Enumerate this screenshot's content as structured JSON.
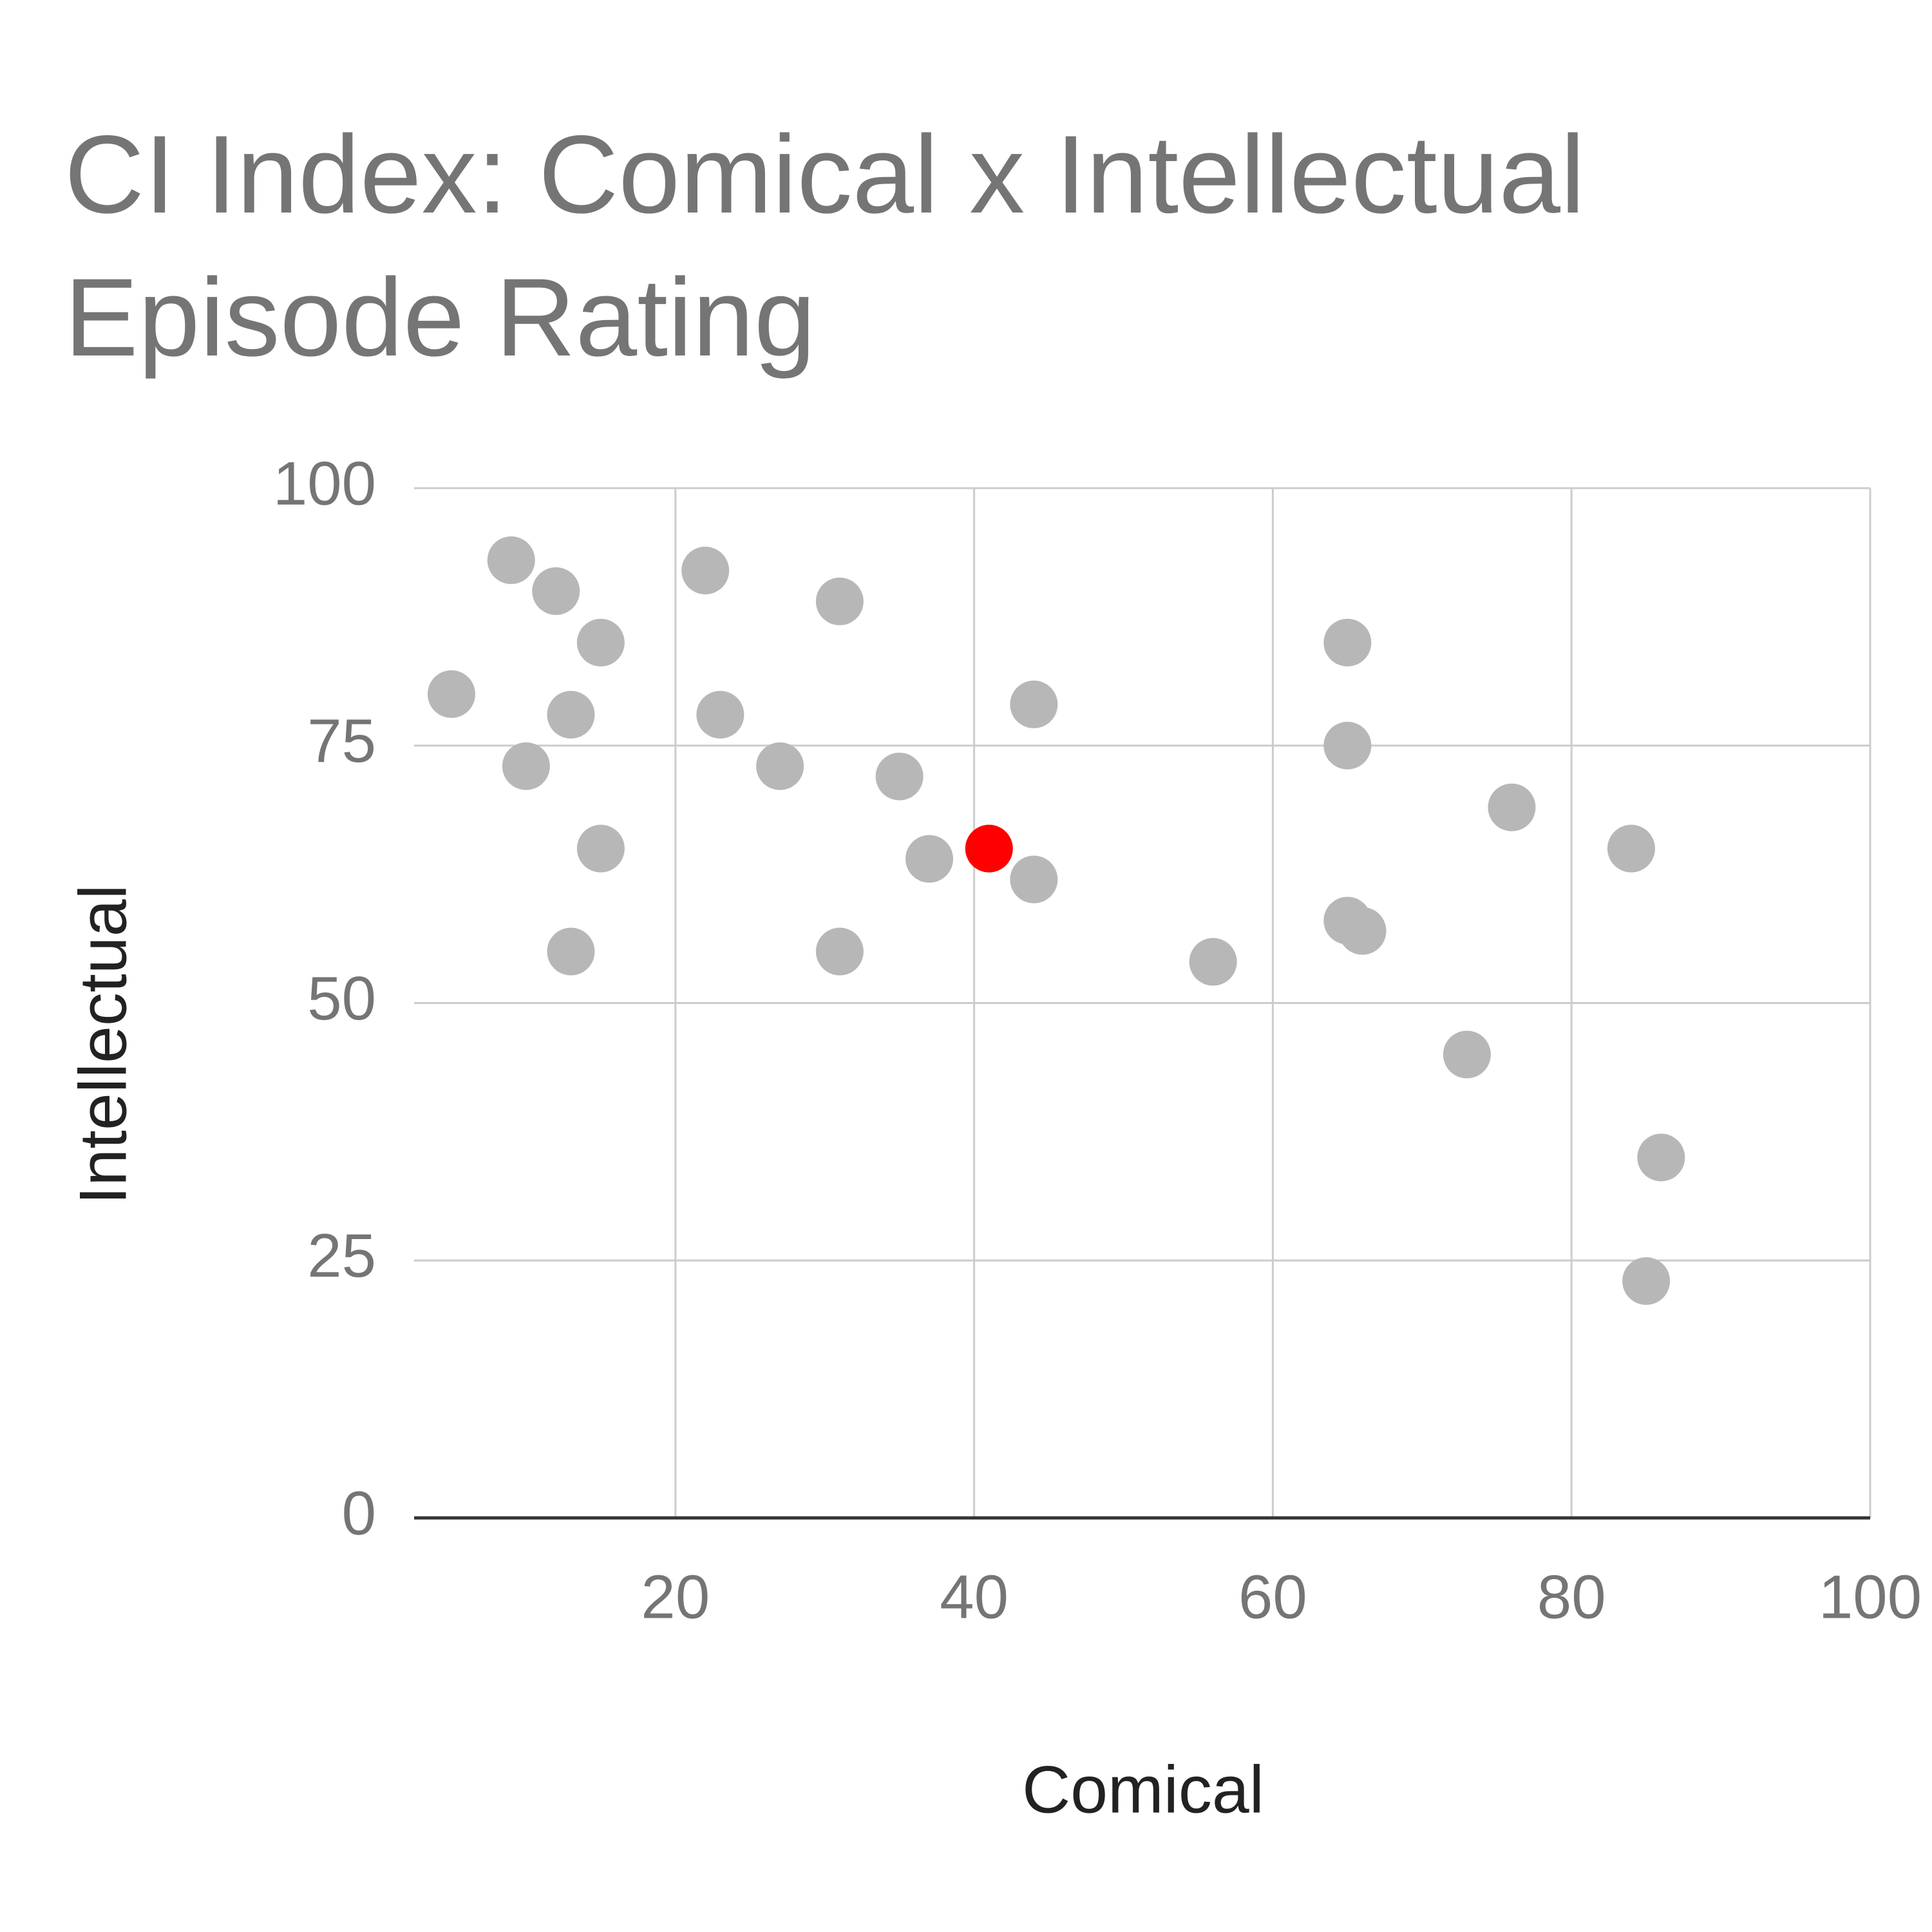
{
  "chart_data": {
    "type": "scatter",
    "title": "CI Index: Comical x Intellectual Episode Rating",
    "x_label": "Comical",
    "y_label": "Intellectual",
    "x": [
      9,
      12,
      15,
      5,
      13,
      10,
      15,
      13,
      22,
      23,
      27,
      31,
      35,
      31,
      37,
      44,
      44,
      41,
      56,
      65,
      65,
      65,
      66,
      76,
      73,
      84,
      86,
      85
    ],
    "y": [
      93,
      90,
      85,
      80,
      78,
      73,
      65,
      55,
      92,
      78,
      73,
      89,
      72,
      55,
      64,
      79,
      62,
      65,
      54,
      85,
      75,
      58,
      57,
      69,
      45,
      65,
      35,
      23
    ],
    "colors": [
      "#b7b7b7",
      "#b7b7b7",
      "#b7b7b7",
      "#b7b7b7",
      "#b7b7b7",
      "#b7b7b7",
      "#b7b7b7",
      "#b7b7b7",
      "#b7b7b7",
      "#b7b7b7",
      "#b7b7b7",
      "#b7b7b7",
      "#b7b7b7",
      "#b7b7b7",
      "#b7b7b7",
      "#b7b7b7",
      "#b7b7b7",
      "#ff0000",
      "#b7b7b7",
      "#b7b7b7",
      "#b7b7b7",
      "#b7b7b7",
      "#b7b7b7",
      "#b7b7b7",
      "#b7b7b7",
      "#b7b7b7",
      "#b7b7b7",
      "#b7b7b7"
    ],
    "xlim": [
      2.5,
      100
    ],
    "ylim": [
      0,
      100
    ],
    "xticks": [
      20,
      40,
      60,
      80,
      100
    ],
    "yticks": [
      0,
      25,
      50,
      75,
      100
    ],
    "grid": true
  }
}
